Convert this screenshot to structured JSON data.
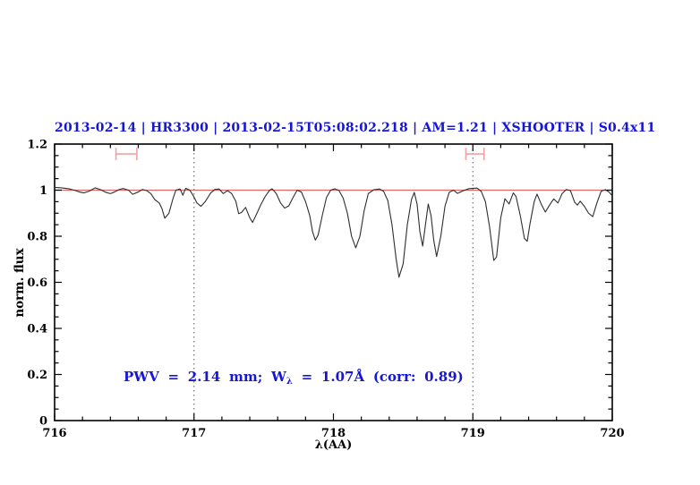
{
  "header": {
    "title": "2013-02-14 | HR3300 | 2013-02-15T05:08:02.218 | AM=1.21 | XSHOOTER | S0.4x11"
  },
  "annotation": {
    "prefix": "PWV = 2.14 mm; W",
    "subscript": "λ",
    "suffix": " = 1.07Å (corr: 0.89)"
  },
  "colors": {
    "title_blue": "#1616d6",
    "annotation_blue": "#1616d6",
    "continuum_red": "#e06a6a",
    "marker_pink": "#f2a2a2",
    "spectrum_black": "#2e2e2e",
    "dotted_gray": "#555555",
    "frame_black": "#000000"
  },
  "chart_data": {
    "type": "line",
    "title": "2013-02-14 | HR3300 | 2013-02-15T05:08:02.218 | AM=1.21 | XSHOOTER | S0.4x11",
    "xlabel": "λ(AA)",
    "ylabel": "norm. flux",
    "xlim": [
      716,
      720
    ],
    "ylim": [
      0,
      1.2
    ],
    "x_tick_labels": [
      "716",
      "717",
      "718",
      "719",
      "720"
    ],
    "x_major_ticks": [
      716,
      717,
      718,
      719,
      720
    ],
    "x_minor_step": 0.2,
    "y_tick_labels": [
      "0",
      "0.2",
      "0.4",
      "0.6",
      "0.8",
      "1",
      "1.2"
    ],
    "y_major_ticks": [
      0,
      0.2,
      0.4,
      0.6,
      0.8,
      1.0,
      1.2
    ],
    "y_minor_step": 0.05,
    "grid": false,
    "dotted_vlines": [
      717,
      719
    ],
    "continuum_line_y": 1.0,
    "legend": "none",
    "annotation_text": "PWV = 2.14 mm; Wλ = 1.07Å (corr: 0.89)",
    "markers": [
      {
        "name": "fitted-band-marker-left",
        "x1": 716.44,
        "x2": 716.59,
        "y": 1.157,
        "cap_half_height": 0.027
      },
      {
        "name": "fitted-band-marker-right",
        "x1": 718.95,
        "x2": 719.08,
        "y": 1.157,
        "cap_half_height": 0.027
      }
    ],
    "series": [
      {
        "name": "normalized telluric spectrum",
        "points": [
          [
            716.0,
            1.012
          ],
          [
            716.05,
            1.01
          ],
          [
            716.1,
            1.006
          ],
          [
            716.14,
            1.0
          ],
          [
            716.18,
            0.992
          ],
          [
            716.21,
            0.988
          ],
          [
            716.25,
            0.996
          ],
          [
            716.29,
            1.01
          ],
          [
            716.33,
            1.002
          ],
          [
            716.37,
            0.99
          ],
          [
            716.4,
            0.985
          ],
          [
            716.43,
            0.992
          ],
          [
            716.46,
            1.002
          ],
          [
            716.49,
            1.007
          ],
          [
            716.53,
            1.0
          ],
          [
            716.56,
            0.982
          ],
          [
            716.6,
            0.992
          ],
          [
            716.63,
            1.003
          ],
          [
            716.66,
            0.998
          ],
          [
            716.69,
            0.985
          ],
          [
            716.72,
            0.958
          ],
          [
            716.75,
            0.945
          ],
          [
            716.77,
            0.92
          ],
          [
            716.79,
            0.878
          ],
          [
            716.82,
            0.9
          ],
          [
            716.85,
            0.965
          ],
          [
            716.87,
            1.0
          ],
          [
            716.9,
            1.005
          ],
          [
            716.92,
            0.978
          ],
          [
            716.94,
            1.008
          ],
          [
            716.97,
            1.0
          ],
          [
            717.0,
            0.97
          ],
          [
            717.02,
            0.945
          ],
          [
            717.05,
            0.93
          ],
          [
            717.08,
            0.95
          ],
          [
            717.12,
            0.988
          ],
          [
            717.15,
            1.003
          ],
          [
            717.18,
            1.005
          ],
          [
            717.21,
            0.985
          ],
          [
            717.24,
            0.998
          ],
          [
            717.27,
            0.985
          ],
          [
            717.3,
            0.952
          ],
          [
            717.32,
            0.898
          ],
          [
            717.34,
            0.903
          ],
          [
            717.37,
            0.925
          ],
          [
            717.4,
            0.88
          ],
          [
            717.42,
            0.86
          ],
          [
            717.45,
            0.898
          ],
          [
            717.48,
            0.938
          ],
          [
            717.51,
            0.972
          ],
          [
            717.54,
            0.998
          ],
          [
            717.56,
            1.006
          ],
          [
            717.59,
            0.985
          ],
          [
            717.62,
            0.945
          ],
          [
            717.65,
            0.922
          ],
          [
            717.68,
            0.932
          ],
          [
            717.71,
            0.968
          ],
          [
            717.74,
            1.0
          ],
          [
            717.77,
            0.992
          ],
          [
            717.8,
            0.95
          ],
          [
            717.83,
            0.89
          ],
          [
            717.85,
            0.82
          ],
          [
            717.87,
            0.783
          ],
          [
            717.89,
            0.805
          ],
          [
            717.92,
            0.89
          ],
          [
            717.95,
            0.968
          ],
          [
            717.98,
            1.0
          ],
          [
            718.01,
            1.006
          ],
          [
            718.04,
            0.998
          ],
          [
            718.07,
            0.965
          ],
          [
            718.1,
            0.9
          ],
          [
            718.13,
            0.8
          ],
          [
            718.16,
            0.75
          ],
          [
            718.19,
            0.8
          ],
          [
            718.22,
            0.91
          ],
          [
            718.25,
            0.985
          ],
          [
            718.29,
            1.002
          ],
          [
            718.33,
            1.005
          ],
          [
            718.36,
            0.995
          ],
          [
            718.39,
            0.955
          ],
          [
            718.42,
            0.85
          ],
          [
            718.45,
            0.7
          ],
          [
            718.47,
            0.622
          ],
          [
            718.5,
            0.68
          ],
          [
            718.53,
            0.85
          ],
          [
            718.56,
            0.96
          ],
          [
            718.58,
            0.99
          ],
          [
            718.6,
            0.94
          ],
          [
            718.62,
            0.82
          ],
          [
            718.64,
            0.757
          ],
          [
            718.66,
            0.85
          ],
          [
            718.68,
            0.94
          ],
          [
            718.7,
            0.89
          ],
          [
            718.72,
            0.78
          ],
          [
            718.74,
            0.712
          ],
          [
            718.77,
            0.8
          ],
          [
            718.8,
            0.93
          ],
          [
            718.83,
            0.99
          ],
          [
            718.86,
            1.0
          ],
          [
            718.89,
            0.986
          ],
          [
            718.93,
            0.997
          ],
          [
            718.97,
            1.006
          ],
          [
            719.0,
            1.008
          ],
          [
            719.03,
            1.009
          ],
          [
            719.06,
            0.995
          ],
          [
            719.09,
            0.95
          ],
          [
            719.12,
            0.84
          ],
          [
            719.15,
            0.695
          ],
          [
            719.17,
            0.71
          ],
          [
            719.2,
            0.88
          ],
          [
            719.23,
            0.963
          ],
          [
            719.26,
            0.94
          ],
          [
            719.29,
            0.988
          ],
          [
            719.31,
            0.972
          ],
          [
            719.34,
            0.89
          ],
          [
            719.37,
            0.79
          ],
          [
            719.39,
            0.778
          ],
          [
            719.41,
            0.855
          ],
          [
            719.44,
            0.95
          ],
          [
            719.46,
            0.983
          ],
          [
            719.49,
            0.94
          ],
          [
            719.52,
            0.905
          ],
          [
            719.55,
            0.935
          ],
          [
            719.58,
            0.962
          ],
          [
            719.61,
            0.944
          ],
          [
            719.64,
            0.985
          ],
          [
            719.67,
            1.003
          ],
          [
            719.7,
            0.998
          ],
          [
            719.73,
            0.948
          ],
          [
            719.75,
            0.935
          ],
          [
            719.77,
            0.952
          ],
          [
            719.8,
            0.93
          ],
          [
            719.83,
            0.9
          ],
          [
            719.86,
            0.885
          ],
          [
            719.89,
            0.945
          ],
          [
            719.92,
            0.995
          ],
          [
            719.95,
            1.002
          ],
          [
            719.98,
            0.99
          ],
          [
            720.0,
            0.975
          ]
        ]
      }
    ]
  }
}
